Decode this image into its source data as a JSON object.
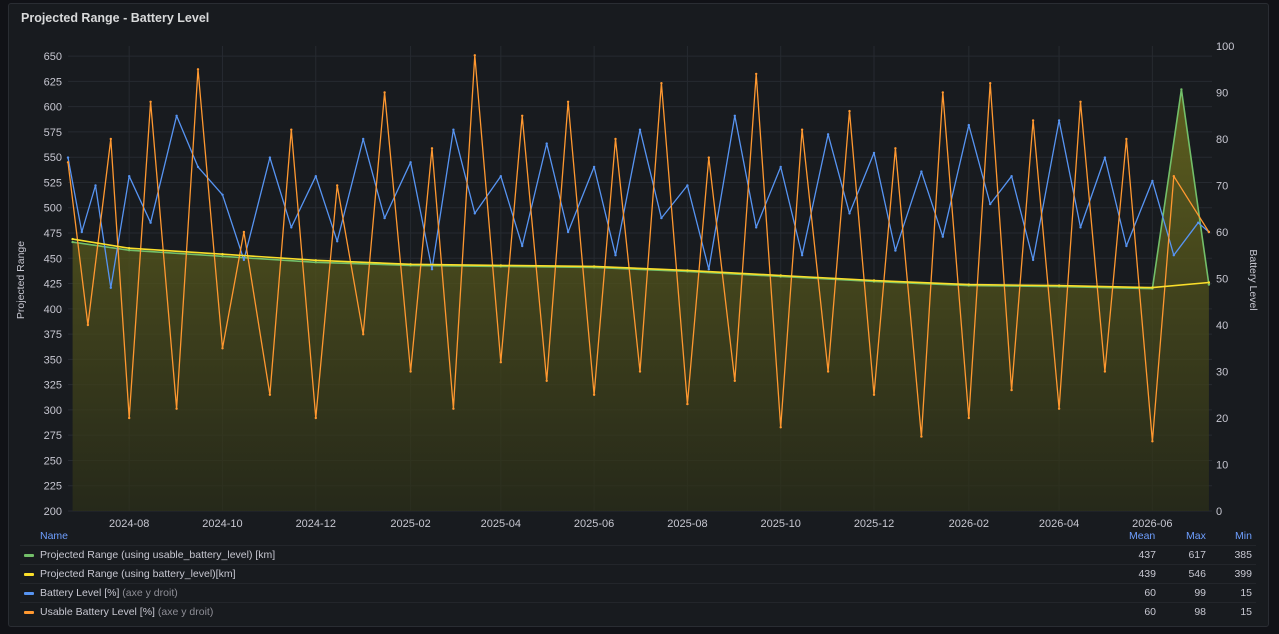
{
  "panel": {
    "title": "Projected Range - Battery Level"
  },
  "chart_data": {
    "type": "line",
    "title": "Projected Range - Battery Level",
    "ylabel_left": "Projected Range",
    "ylabel_right": "Battery Level",
    "ylim_left": [
      200,
      660
    ],
    "ylim_right": [
      0,
      100
    ],
    "yticks_left": [
      650,
      625,
      600,
      575,
      550,
      525,
      500,
      475,
      450,
      425,
      400,
      375,
      350,
      325,
      300,
      275,
      250,
      225,
      200
    ],
    "yticks_right": [
      100,
      90,
      80,
      70,
      60,
      50,
      40,
      30,
      20,
      10,
      0
    ],
    "x_range": [
      "2024-06-22",
      "2026-07-10"
    ],
    "x_ticks": [
      "2024-08",
      "2024-10",
      "2024-12",
      "2025-02",
      "2025-04",
      "2025-06",
      "2025-08",
      "2025-10",
      "2025-12",
      "2026-02",
      "2026-04",
      "2026-06"
    ],
    "grid": true,
    "legend_position": "bottom",
    "series": [
      {
        "name": "Projected Range (using usable_battery_level) [km]",
        "axis": "left",
        "color": "#73bf69",
        "style": "area",
        "x": [
          "2024-06-25",
          "2024-08-01",
          "2024-10-01",
          "2024-12-01",
          "2025-02-01",
          "2025-04-01",
          "2025-06-01",
          "2025-08-01",
          "2025-10-01",
          "2025-12-01",
          "2026-02-01",
          "2026-04-01",
          "2026-06-01",
          "2026-06-20",
          "2026-07-08"
        ],
        "y": [
          466,
          458,
          452,
          446,
          443,
          442,
          441,
          437,
          432,
          427,
          423,
          422,
          420,
          617,
          424
        ]
      },
      {
        "name": "Projected Range (using battery_level)[km]",
        "axis": "left",
        "color": "#fade2a",
        "style": "line",
        "x": [
          "2024-06-25",
          "2024-08-01",
          "2024-10-01",
          "2024-12-01",
          "2025-02-01",
          "2025-04-01",
          "2025-06-01",
          "2025-08-01",
          "2025-10-01",
          "2025-12-01",
          "2026-02-01",
          "2026-04-01",
          "2026-06-01",
          "2026-07-08"
        ],
        "y": [
          469,
          460,
          454,
          448,
          444,
          443,
          442,
          438,
          433,
          428,
          424,
          423,
          421,
          426
        ]
      },
      {
        "name": "Battery Level [%]",
        "suffix": "(axe y droit)",
        "axis": "right",
        "color": "#5794f2",
        "style": "line",
        "x": [
          "2024-06-22",
          "2024-07-01",
          "2024-07-10",
          "2024-07-20",
          "2024-08-01",
          "2024-08-15",
          "2024-09-01",
          "2024-09-15",
          "2024-10-01",
          "2024-10-15",
          "2024-11-01",
          "2024-11-15",
          "2024-12-01",
          "2024-12-15",
          "2025-01-01",
          "2025-01-15",
          "2025-02-01",
          "2025-02-15",
          "2025-03-01",
          "2025-03-15",
          "2025-04-01",
          "2025-04-15",
          "2025-05-01",
          "2025-05-15",
          "2025-06-01",
          "2025-06-15",
          "2025-07-01",
          "2025-07-15",
          "2025-08-01",
          "2025-08-15",
          "2025-09-01",
          "2025-09-15",
          "2025-10-01",
          "2025-10-15",
          "2025-11-01",
          "2025-11-15",
          "2025-12-01",
          "2025-12-15",
          "2026-01-01",
          "2026-01-15",
          "2026-02-01",
          "2026-02-15",
          "2026-03-01",
          "2026-03-15",
          "2026-04-01",
          "2026-04-15",
          "2026-05-01",
          "2026-05-15",
          "2026-06-01",
          "2026-06-15",
          "2026-07-01",
          "2026-07-08"
        ],
        "y": [
          76,
          60,
          70,
          48,
          72,
          62,
          85,
          74,
          68,
          54,
          76,
          61,
          72,
          58,
          80,
          63,
          75,
          52,
          82,
          64,
          72,
          57,
          79,
          60,
          74,
          55,
          82,
          63,
          70,
          52,
          85,
          61,
          74,
          55,
          81,
          64,
          77,
          56,
          73,
          59,
          83,
          66,
          72,
          54,
          84,
          61,
          76,
          57,
          71,
          55,
          62,
          60
        ]
      },
      {
        "name": "Usable Battery Level [%]",
        "suffix": "(axe y droit)",
        "axis": "right",
        "color": "#ff9830",
        "style": "line",
        "x": [
          "2024-06-22",
          "2024-07-05",
          "2024-07-20",
          "2024-08-01",
          "2024-08-15",
          "2024-09-01",
          "2024-09-15",
          "2024-10-01",
          "2024-10-15",
          "2024-11-01",
          "2024-11-15",
          "2024-12-01",
          "2024-12-15",
          "2025-01-01",
          "2025-01-15",
          "2025-02-01",
          "2025-02-15",
          "2025-03-01",
          "2025-03-15",
          "2025-04-01",
          "2025-04-15",
          "2025-05-01",
          "2025-05-15",
          "2025-06-01",
          "2025-06-15",
          "2025-07-01",
          "2025-07-15",
          "2025-08-01",
          "2025-08-15",
          "2025-09-01",
          "2025-09-15",
          "2025-10-01",
          "2025-10-15",
          "2025-11-01",
          "2025-11-15",
          "2025-12-01",
          "2025-12-15",
          "2026-01-01",
          "2026-01-15",
          "2026-02-01",
          "2026-02-15",
          "2026-03-01",
          "2026-03-15",
          "2026-04-01",
          "2026-04-15",
          "2026-05-01",
          "2026-05-15",
          "2026-06-01",
          "2026-06-15",
          "2026-07-08"
        ],
        "y": [
          75,
          40,
          80,
          20,
          88,
          22,
          95,
          35,
          60,
          25,
          82,
          20,
          70,
          38,
          90,
          30,
          78,
          22,
          98,
          32,
          85,
          28,
          88,
          25,
          80,
          30,
          92,
          23,
          76,
          28,
          94,
          18,
          82,
          30,
          86,
          25,
          78,
          16,
          90,
          20,
          92,
          26,
          84,
          22,
          88,
          30,
          80,
          15,
          72,
          60
        ]
      }
    ]
  },
  "legend": {
    "headers": {
      "name": "Name",
      "mean": "Mean",
      "max": "Max",
      "min": "Min"
    },
    "rows": [
      {
        "name": "Projected Range (using usable_battery_level) [km]",
        "suffix": "",
        "color": "#73bf69",
        "mean": "437",
        "max": "617",
        "min": "385"
      },
      {
        "name": "Projected Range (using battery_level)[km]",
        "suffix": "",
        "color": "#fade2a",
        "mean": "439",
        "max": "546",
        "min": "399"
      },
      {
        "name": "Battery Level [%]",
        "suffix": "(axe y droit)",
        "color": "#5794f2",
        "mean": "60",
        "max": "99",
        "min": "15"
      },
      {
        "name": "Usable Battery Level [%]",
        "suffix": "(axe y droit)",
        "color": "#ff9830",
        "mean": "60",
        "max": "98",
        "min": "15"
      }
    ]
  }
}
